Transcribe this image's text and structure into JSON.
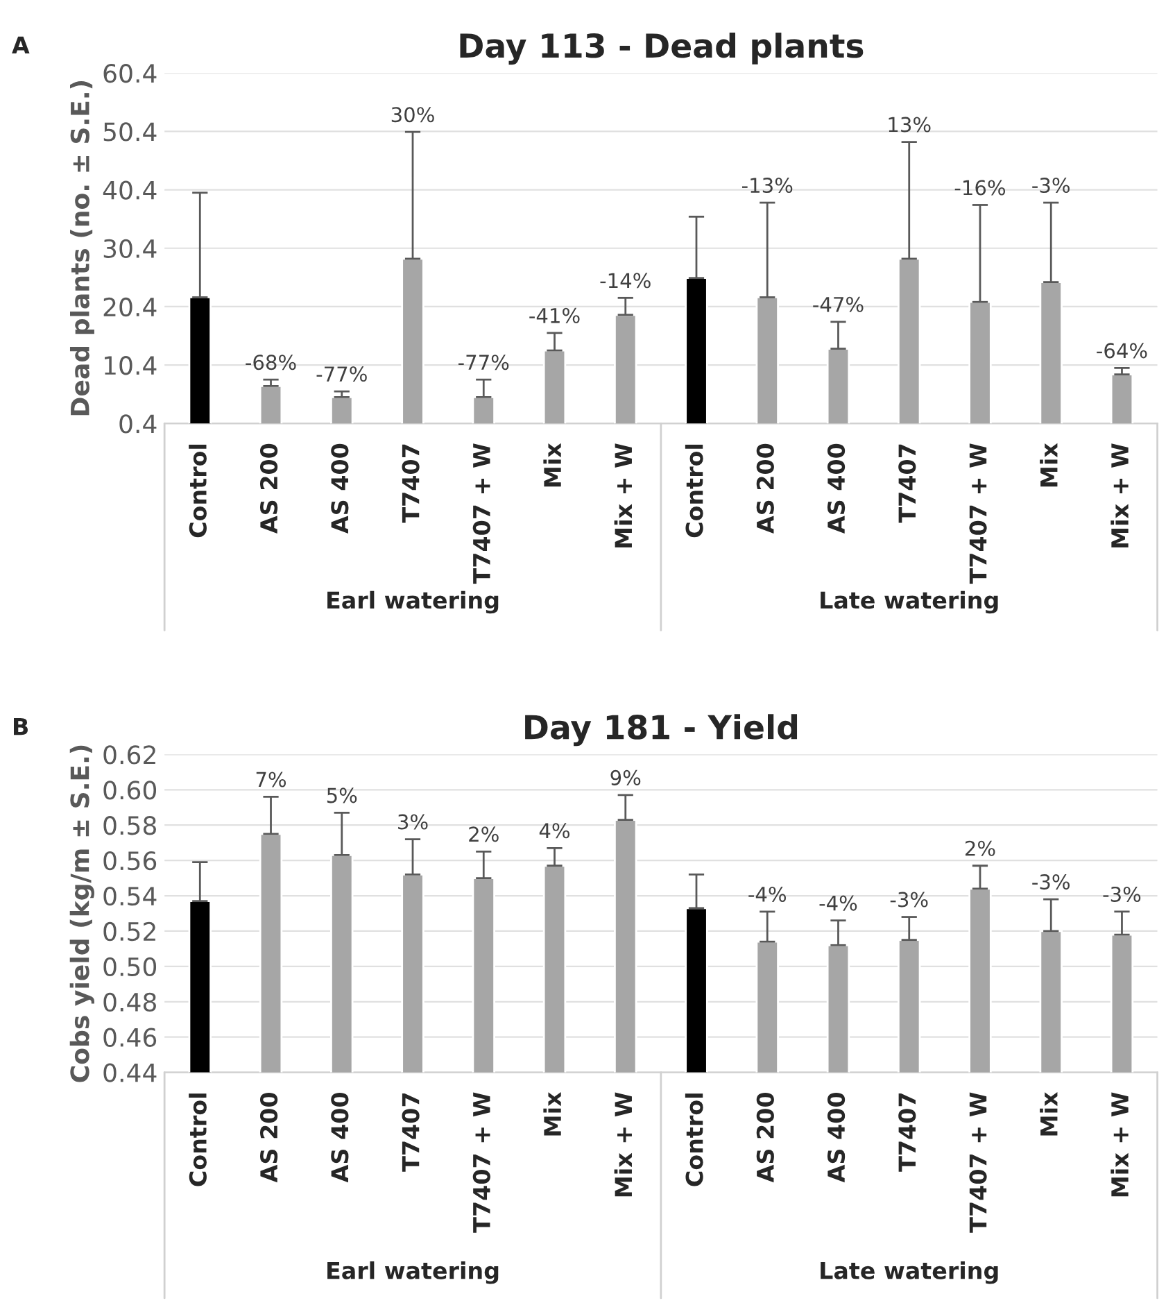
{
  "chart_data": [
    {
      "type": "bar",
      "title": "Day 113 - Dead plants",
      "ylabel": "Dead plants (no. ± S.E.)",
      "categories": [
        "Control",
        "AS 200",
        "AS 400",
        "T7407",
        "T7407 + W",
        "Mix",
        "Mix + W",
        "Control",
        "AS 200",
        "AS 400",
        "T7407",
        "T7407 + W",
        "Mix",
        "Mix + W"
      ],
      "values": [
        22.0,
        6.8,
        4.9,
        28.6,
        4.9,
        12.9,
        19.0,
        25.3,
        22.0,
        13.2,
        28.6,
        21.2,
        24.6,
        8.8
      ],
      "errors": [
        [
          22.0,
          39.9
        ],
        [
          6.8,
          7.9
        ],
        [
          4.9,
          5.9
        ],
        [
          28.6,
          50.3
        ],
        [
          4.9,
          7.9
        ],
        [
          12.9,
          15.9
        ],
        [
          19.0,
          21.9
        ],
        [
          25.3,
          35.8
        ],
        [
          22.0,
          38.2
        ],
        [
          13.2,
          17.8
        ],
        [
          28.6,
          48.6
        ],
        [
          21.2,
          37.8
        ],
        [
          24.6,
          38.2
        ],
        [
          8.8,
          9.9
        ]
      ],
      "colors": [
        "#000000",
        "#a6a6a6",
        "#a6a6a6",
        "#a6a6a6",
        "#a6a6a6",
        "#a6a6a6",
        "#a6a6a6",
        "#000000",
        "#a6a6a6",
        "#a6a6a6",
        "#a6a6a6",
        "#a6a6a6",
        "#a6a6a6",
        "#a6a6a6"
      ],
      "ylim": [
        0.4,
        60.4
      ],
      "yticks": [
        0.4,
        10.4,
        20.4,
        30.4,
        40.4,
        50.4,
        60.4
      ],
      "grid": "y",
      "annotations": [
        "A",
        "Earl watering",
        "Late watering",
        {
          "text": "-68%",
          "x": "AS 200",
          "y": 7.9
        },
        {
          "text": "-77%",
          "x": "AS 400",
          "y": 5.9
        },
        {
          "text": "30%",
          "x": "T7407",
          "y": 50.3
        },
        {
          "text": "-77%",
          "x": "T7407 + W",
          "y": 7.9
        },
        {
          "text": "-41%",
          "x": "Mix",
          "y": 15.9
        },
        {
          "text": "-14%",
          "x": "Mix + W",
          "y": 21.9
        },
        "-13%",
        "-47%",
        "13%",
        "-16%",
        "-3%",
        "-64%"
      ]
    },
    {
      "type": "bar",
      "title": "Day 181 - Yield",
      "ylabel": "Cobs yield (kg/m ± S.E.)",
      "categories": [
        "Control",
        "AS 200",
        "AS 400",
        "T7407",
        "T7407 + W",
        "Mix",
        "Mix + W",
        "Control",
        "AS 200",
        "AS 400",
        "T7407",
        "T7407 + W",
        "Mix",
        "Mix + W"
      ],
      "values": [
        0.537,
        0.575,
        0.563,
        0.552,
        0.55,
        0.557,
        0.583,
        0.533,
        0.514,
        0.512,
        0.515,
        0.544,
        0.52,
        0.518
      ],
      "errors": [
        [
          0.537,
          0.559
        ],
        [
          0.575,
          0.596
        ],
        [
          0.563,
          0.587
        ],
        [
          0.552,
          0.572
        ],
        [
          0.55,
          0.565
        ],
        [
          0.557,
          0.567
        ],
        [
          0.583,
          0.597
        ],
        [
          0.533,
          0.552
        ],
        [
          0.514,
          0.531
        ],
        [
          0.512,
          0.526
        ],
        [
          0.515,
          0.528
        ],
        [
          0.544,
          0.557
        ],
        [
          0.52,
          0.538
        ],
        [
          0.518,
          0.531
        ]
      ],
      "colors": [
        "#000000",
        "#a6a6a6",
        "#a6a6a6",
        "#a6a6a6",
        "#a6a6a6",
        "#a6a6a6",
        "#a6a6a6",
        "#000000",
        "#a6a6a6",
        "#a6a6a6",
        "#a6a6a6",
        "#a6a6a6",
        "#a6a6a6",
        "#a6a6a6"
      ],
      "ylim": [
        0.44,
        0.62
      ],
      "yticks": [
        {
          "value": 0.44,
          "label": "0.44"
        },
        {
          "value": 0.46,
          "label": "0.46"
        },
        {
          "value": 0.48,
          "label": "0.48"
        },
        {
          "value": 0.5,
          "label": "0.50"
        },
        {
          "value": 0.52,
          "label": "0.52"
        },
        {
          "value": 0.54,
          "label": "0.54"
        },
        {
          "value": 0.56,
          "label": "0.56"
        },
        {
          "value": 0.58,
          "label": "0.58"
        },
        {
          "value": 0.6,
          "label": "0.60"
        },
        {
          "value": 0.62,
          "label": "0.62"
        }
      ],
      "grid": "y",
      "annotations": [
        "B",
        "Earl watering",
        "Late watering",
        {
          "text": "7%",
          "x": "AS 200",
          "y": 0.596
        },
        {
          "text": "5%",
          "x": "AS 400",
          "y": 0.587
        },
        {
          "text": "3%",
          "x": "T7407",
          "y": 0.572
        },
        {
          "text": "2%",
          "x": "T7407 + W",
          "y": 0.565
        },
        {
          "text": "4%",
          "x": "Mix",
          "y": 0.567
        },
        {
          "text": "9%",
          "x": "Mix + W",
          "y": 0.597
        },
        "-4%",
        "-4%",
        "-3%",
        "2%",
        "-3%",
        "-3%"
      ]
    }
  ]
}
